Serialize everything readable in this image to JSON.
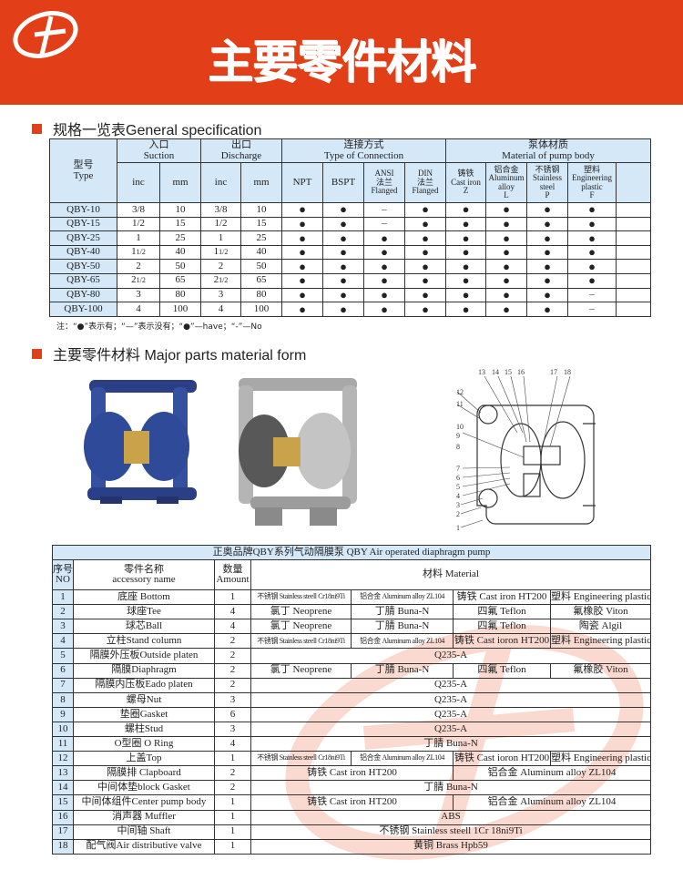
{
  "header": {
    "title": "主要零件材料",
    "brand_color": "#e23e17"
  },
  "section1": {
    "label": "规格一览表General specification"
  },
  "spec": {
    "headers": {
      "type_cn": "型号",
      "type_en": "Type",
      "suction_cn": "入口",
      "suction_en": "Suction",
      "discharge_cn": "出口",
      "discharge_en": "Discharge",
      "conn_cn": "连接方式",
      "conn_en": "Type of Connection",
      "mat_cn": "泵体材质",
      "mat_en": "Material of pump body",
      "inc": "inc",
      "mm": "mm",
      "npt": "NPT",
      "bspt": "BSPT",
      "ansi_1": "ANSI",
      "ansi_2": "法兰",
      "ansi_3": "Flanged",
      "din_1": "DIN",
      "din_2": "法兰",
      "din_3": "Flanged",
      "z_1": "铸铁",
      "z_2": "Cast iron",
      "z_3": "Z",
      "l_1": "铝合金",
      "l_2": "Aluminum",
      "l_3": "alloy",
      "l_4": "L",
      "p_1": "不锈钢",
      "p_2": "Stainless",
      "p_3": "steel",
      "p_4": "P",
      "f_1": "塑料",
      "f_2": "Engineering",
      "f_3": "plastic",
      "f_4": "F"
    },
    "rows": [
      [
        "QBY-10",
        "3/8",
        "10",
        "3/8",
        "10",
        "●",
        "●",
        "–",
        "●",
        "●",
        "●",
        "●",
        "●"
      ],
      [
        "QBY-15",
        "1/2",
        "15",
        "1/2",
        "15",
        "●",
        "●",
        "–",
        "●",
        "●",
        "●",
        "●",
        "●"
      ],
      [
        "QBY-25",
        "1",
        "25",
        "1",
        "25",
        "●",
        "●",
        "●",
        "●",
        "●",
        "●",
        "●",
        "●"
      ],
      [
        "QBY-40",
        "1 1/2",
        "40",
        "1 1/2",
        "40",
        "●",
        "●",
        "●",
        "●",
        "●",
        "●",
        "●",
        "●"
      ],
      [
        "QBY-50",
        "2",
        "50",
        "2",
        "50",
        "●",
        "●",
        "●",
        "●",
        "●",
        "●",
        "●",
        "●"
      ],
      [
        "QBY-65",
        "2 1/2",
        "65",
        "2 1/2",
        "65",
        "●",
        "●",
        "●",
        "●",
        "●",
        "●",
        "●",
        "●"
      ],
      [
        "QBY-80",
        "3",
        "80",
        "3",
        "80",
        "●",
        "●",
        "●",
        "●",
        "●",
        "●",
        "●",
        "–"
      ],
      [
        "QBY-100",
        "4",
        "100",
        "4",
        "100",
        "●",
        "●",
        "●",
        "●",
        "●",
        "●",
        "●",
        "–"
      ]
    ],
    "note": "注：“●”表示有；“—”表示没有；“●”—have；“-”—No"
  },
  "section2": {
    "label": "主要零件材料 Major parts material form"
  },
  "diagram": {
    "labels": [
      "1",
      "2",
      "3",
      "4",
      "5",
      "6",
      "7",
      "8",
      "9",
      "10",
      "11",
      "12",
      "13",
      "14",
      "15",
      "16",
      "17",
      "18"
    ]
  },
  "parts": {
    "title": "正奥品牌QBY系列气动隔膜泵  QBY Air operated diaphragm pump",
    "h_no_cn": "序号",
    "h_no_en": "NO",
    "h_name_cn": "零件名称",
    "h_name_en": "accessory name",
    "h_amt_cn": "数量",
    "h_amt_en": "Amount",
    "h_material": "材料 Material",
    "rows": [
      {
        "no": "1",
        "name": "底座 Bottom",
        "amount": "1",
        "materials": [
          "不锈钢 Stainless steell Cr18ni9Ti",
          "铝合金 Aluminum alloy ZL104",
          "铸铁 Cast iron HT200",
          "塑料 Engineering plastic"
        ]
      },
      {
        "no": "2",
        "name": "球座Tee",
        "amount": "4",
        "materials": [
          "氯丁 Neoprene",
          "丁腈 Buna-N",
          "四氟 Teflon",
          "氟橡胶 Viton"
        ]
      },
      {
        "no": "3",
        "name": "球芯Ball",
        "amount": "4",
        "materials": [
          "氯丁 Neoprene",
          "丁腈 Buna-N",
          "四氟 Teflon",
          "陶瓷 Algil"
        ]
      },
      {
        "no": "4",
        "name": "立柱Stand column",
        "amount": "2",
        "materials": [
          "不锈钢 Stainless steell Cr18ni9Ti",
          "铝合金 Aluminum alloy ZL104",
          "铸铁 Cast ioron HT200",
          "塑料 Engineering plastic"
        ]
      },
      {
        "no": "5",
        "name": "隔膜外压板Outside platen",
        "amount": "2",
        "materials": [
          "Q235-A"
        ]
      },
      {
        "no": "6",
        "name": "隔膜Diaphragm",
        "amount": "2",
        "materials": [
          "氯丁 Neoprene",
          "丁腈 Buna-N",
          "四氟 Teflon",
          "氟橡胶 Viton"
        ]
      },
      {
        "no": "7",
        "name": "隔膜内压板Eado platen",
        "amount": "2",
        "materials": [
          "Q235-A"
        ]
      },
      {
        "no": "8",
        "name": "螺母Nut",
        "amount": "3",
        "materials": [
          "Q235-A"
        ]
      },
      {
        "no": "9",
        "name": "垫圈Gasket",
        "amount": "6",
        "materials": [
          "Q235-A"
        ]
      },
      {
        "no": "10",
        "name": "螺柱Stud",
        "amount": "3",
        "materials": [
          "Q235-A"
        ]
      },
      {
        "no": "11",
        "name": "O型圈 O Ring",
        "amount": "4",
        "materials": [
          "丁腈 Buna-N"
        ]
      },
      {
        "no": "12",
        "name": "上盖Top",
        "amount": "1",
        "materials": [
          "不锈钢 Stainless steell Cr18ni9Ti",
          "铝合金 Aluminum alloy ZL104",
          "铸铁 Cast ioron HT200",
          "塑料 Engineering plastic"
        ]
      },
      {
        "no": "13",
        "name": "隔膜排 Clapboard",
        "amount": "2",
        "materials": [
          "铸铁 Cast iron HT200",
          "铝合金 Aluminum alloy ZL104"
        ]
      },
      {
        "no": "14",
        "name": "中间体垫block Gasket",
        "amount": "2",
        "materials": [
          "丁腈 Buna-N"
        ]
      },
      {
        "no": "15",
        "name": "中间体组件Center pump body",
        "amount": "1",
        "materials": [
          "铸铁 Cast iron HT200",
          "铝合金 Aluminum alloy ZL104"
        ]
      },
      {
        "no": "16",
        "name": "消声器 Muffler",
        "amount": "1",
        "materials": [
          "ABS"
        ]
      },
      {
        "no": "17",
        "name": "中间轴 Shaft",
        "amount": "1",
        "materials": [
          "不锈钢 Stainless steell 1Cr 18ni9Ti"
        ]
      },
      {
        "no": "18",
        "name": "配气阀Air distributive valve",
        "amount": "1",
        "materials": [
          "黄铜 Brass Hpb59"
        ]
      }
    ]
  }
}
